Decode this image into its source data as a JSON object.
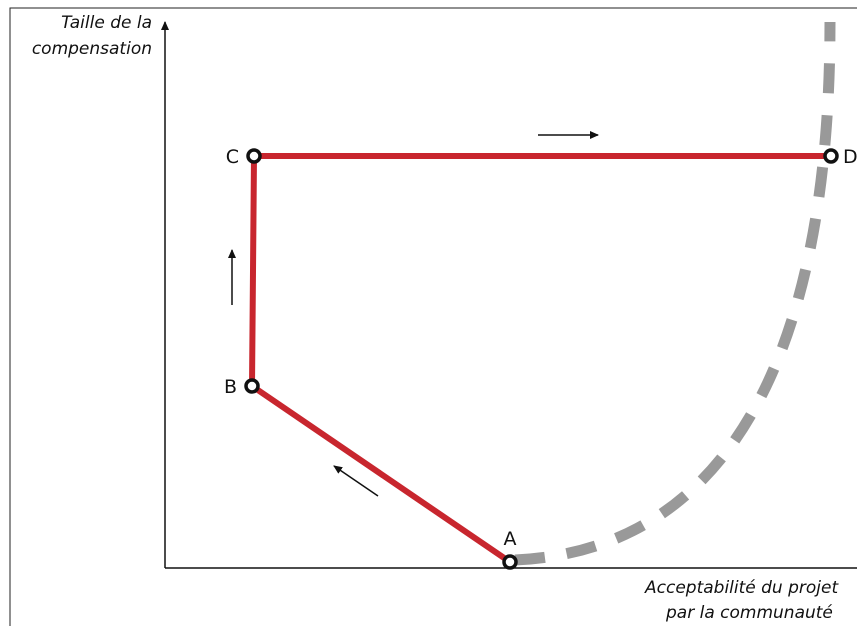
{
  "y_axis": {
    "label_lines": [
      "Taille de la",
      "compensation"
    ]
  },
  "x_axis": {
    "label_lines": [
      "Acceptabilité du projet",
      "par la communauté"
    ]
  },
  "nodes": [
    {
      "label": "A"
    },
    {
      "label": "B"
    },
    {
      "label": "C"
    },
    {
      "label": "D"
    }
  ]
}
